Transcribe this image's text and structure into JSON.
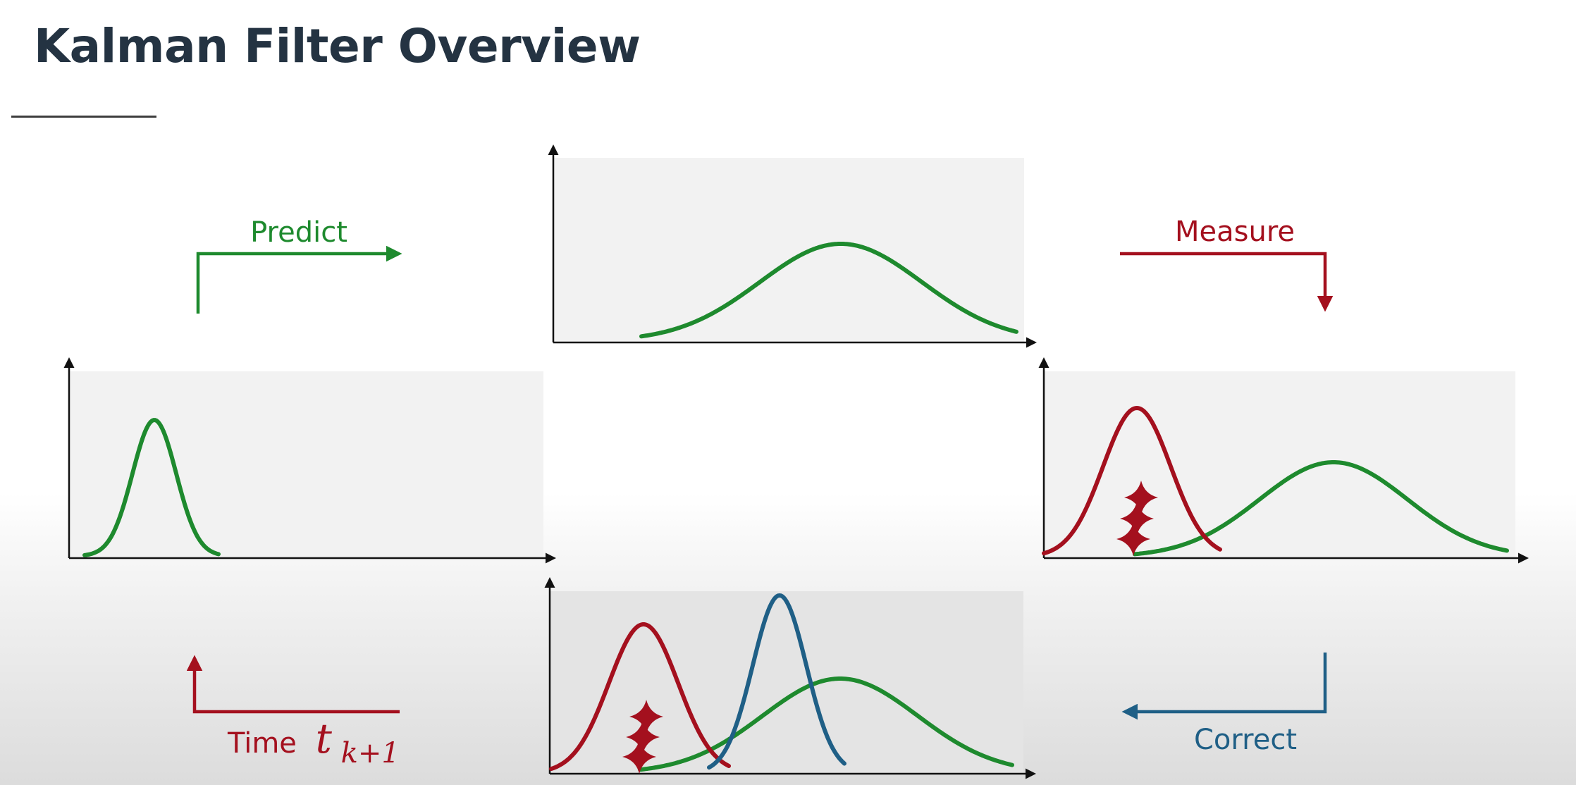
{
  "title": "Kalman Filter Overview",
  "colors": {
    "predict": "#1e8a2e",
    "measure": "#a4101e",
    "correct": "#1f5f86",
    "axis": "#111111",
    "panel": "#f2f2f2",
    "title": "#243342"
  },
  "labels": {
    "predict": "Predict",
    "measure": "Measure",
    "correct": "Correct",
    "time": "Time",
    "time_var": "t",
    "time_sub": "k+1"
  }
}
